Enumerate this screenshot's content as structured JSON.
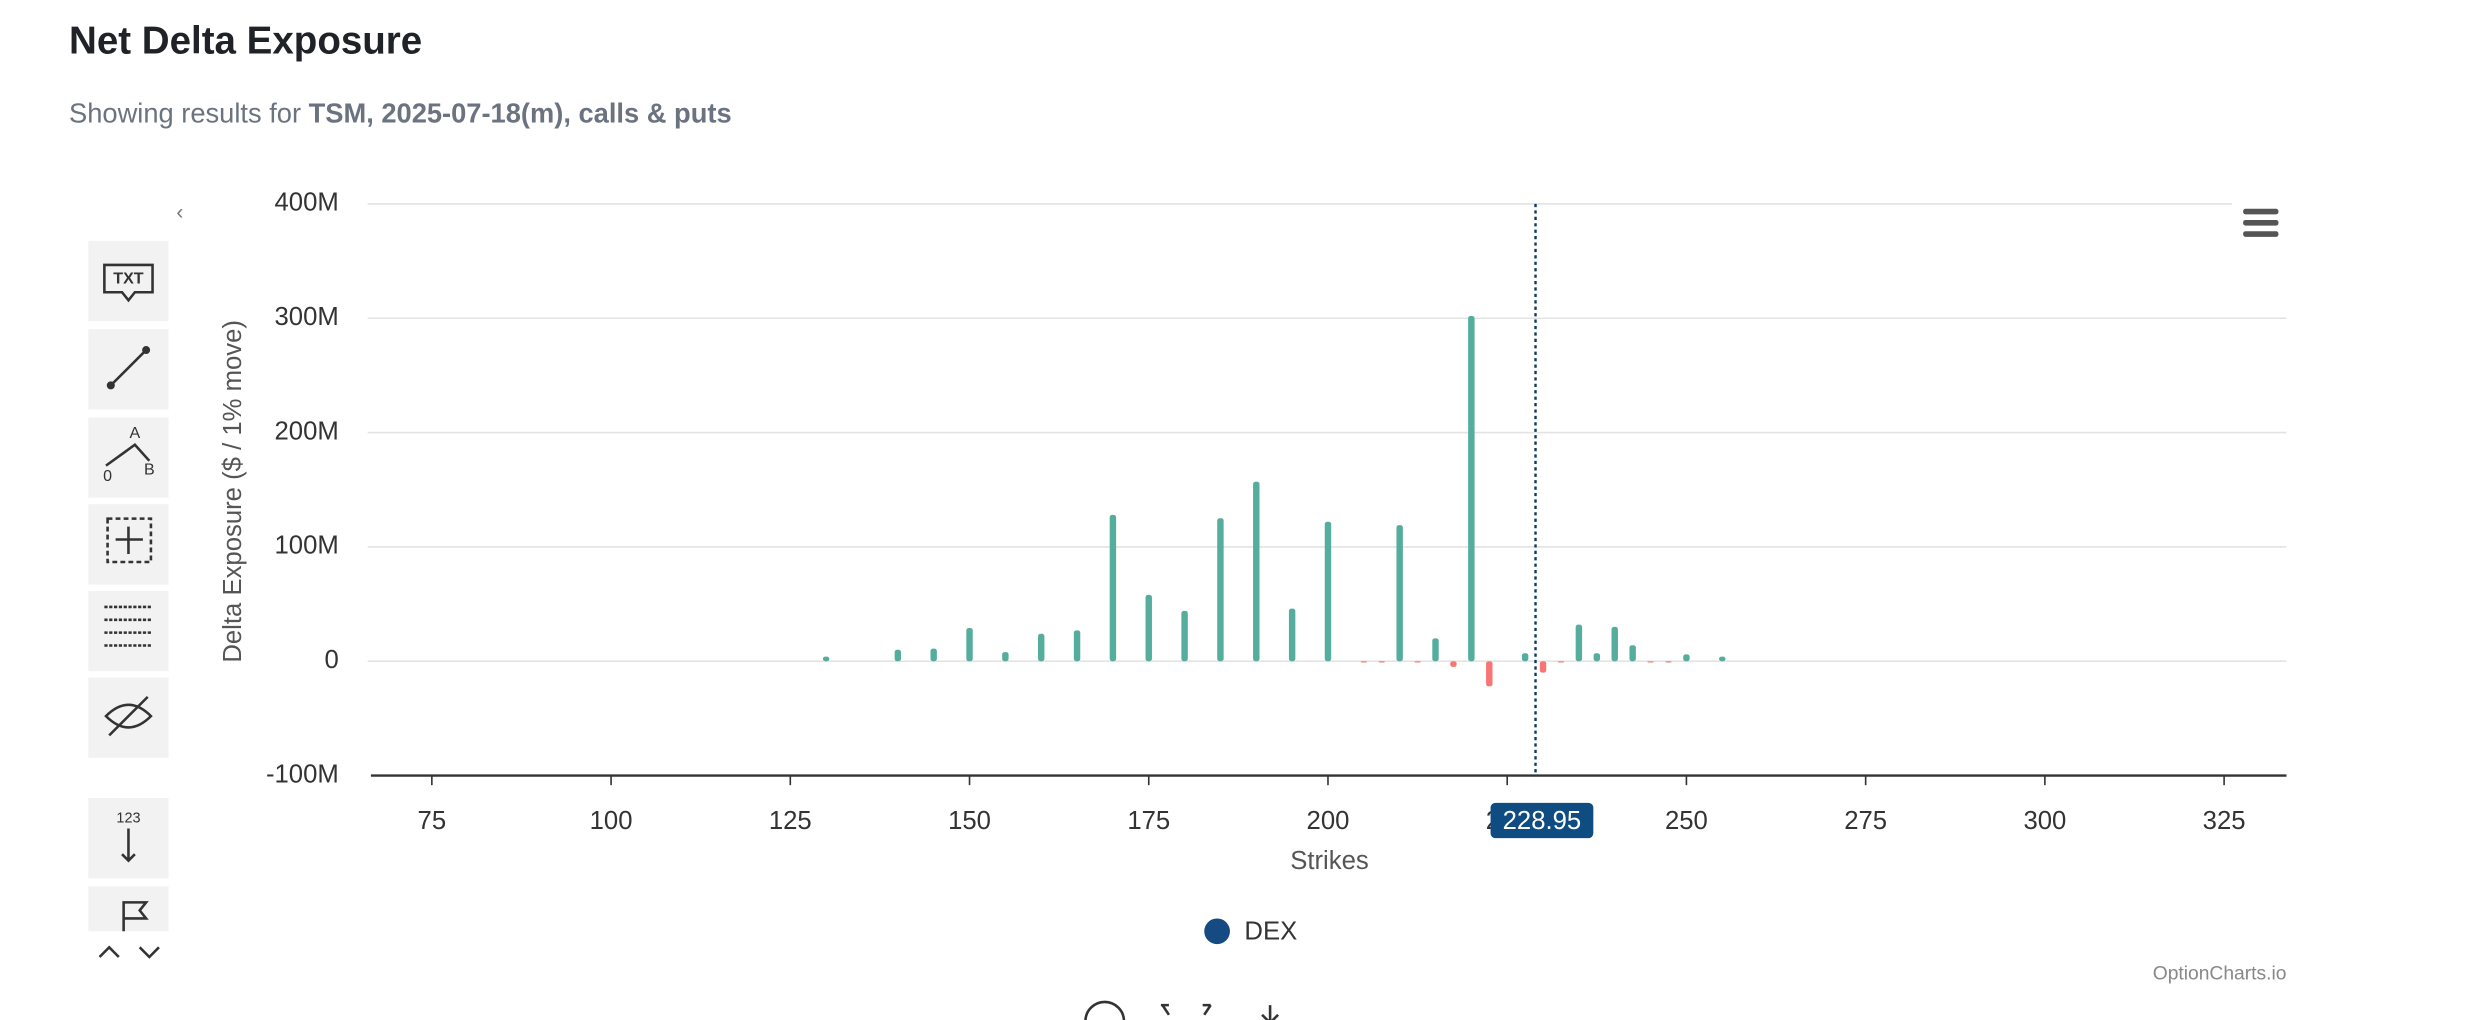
{
  "header": {
    "title": "Net Delta Exposure",
    "subtitle_prefix": "Showing results for ",
    "subtitle_bold": "TSM, 2025-07-18(m), calls & puts"
  },
  "toolbar": {
    "text_tool": "TXT",
    "pattern_labels": [
      "A",
      "0",
      "B"
    ],
    "counter_tool": "123"
  },
  "chart_data": {
    "type": "bar",
    "x_label": "Strikes",
    "y_label": "Delta Exposure ($ / 1% move)",
    "x": [
      130,
      140,
      145,
      150,
      155,
      160,
      165,
      170,
      175,
      180,
      185,
      190,
      195,
      200,
      205,
      207.5,
      210,
      212.5,
      215,
      217.5,
      220,
      222.5,
      227.5,
      230,
      232.5,
      235,
      237.5,
      240,
      242.5,
      245,
      247.5,
      250,
      255
    ],
    "series": [
      {
        "name": "DEX",
        "color": "#154a82",
        "values": [
          4000000,
          10000000,
          11000000,
          29000000,
          8000000,
          24000000,
          27000000,
          128000000,
          58000000,
          44000000,
          125000000,
          157000000,
          46000000,
          122000000,
          -1000000,
          -1000000,
          119000000,
          -1000000,
          20000000,
          -5000000,
          302000000,
          -22000000,
          7000000,
          -10000000,
          -1000000,
          32000000,
          7000000,
          30000000,
          14000000,
          -1000000,
          -1000000,
          6000000,
          4000000
        ]
      }
    ],
    "positive_color": "#55ad9e",
    "negative_color": "#f87575",
    "xlim": [
      66.5,
      333.7
    ],
    "xticks": [
      75,
      100,
      125,
      150,
      175,
      200,
      225,
      250,
      275,
      300,
      325
    ],
    "ylim": [
      -100000000,
      400000000
    ],
    "yticks": [
      {
        "value": -100000000,
        "label": "-100M"
      },
      0,
      {
        "value": 100000000,
        "label": "100M"
      },
      {
        "value": 200000000,
        "label": "200M"
      },
      {
        "value": 300000000,
        "label": "300M"
      },
      {
        "value": 400000000,
        "label": "400M"
      }
    ],
    "grid": true,
    "crosshair": 228.95,
    "credit": "OptionCharts.io"
  }
}
